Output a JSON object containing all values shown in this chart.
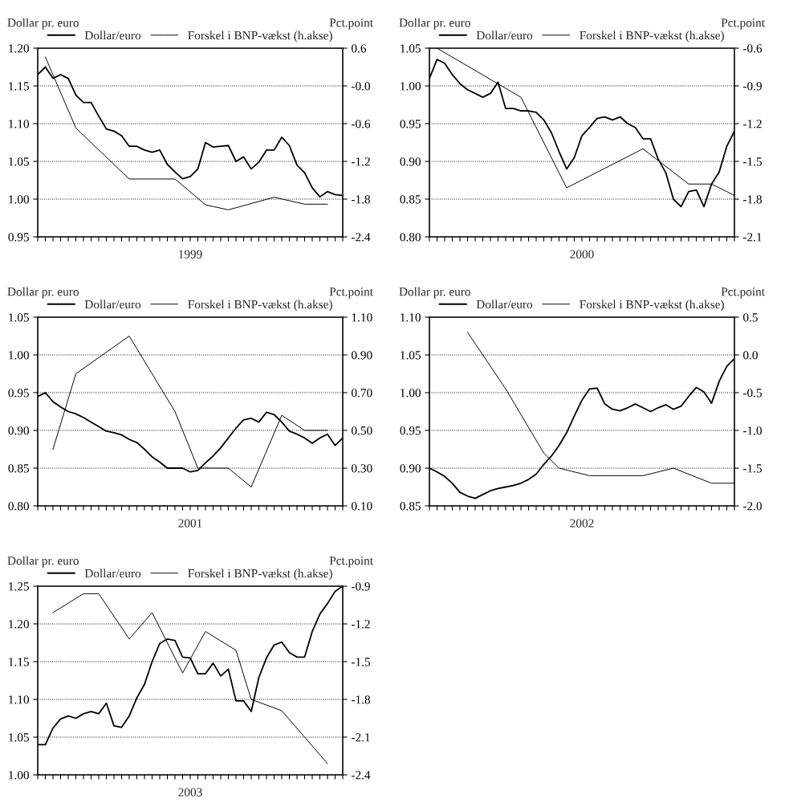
{
  "chart_data": [
    {
      "type": "line",
      "xlabel": "1999",
      "ylabel": "Dollar pr. euro",
      "y2label": "Pct.point",
      "categories": [
        null,
        null,
        null,
        null,
        null,
        null,
        null,
        null,
        null,
        null,
        null,
        null,
        null,
        null,
        null,
        null,
        null,
        null,
        null,
        null,
        null,
        null,
        null,
        null,
        null,
        null,
        null,
        null,
        null,
        null,
        null,
        null,
        null,
        null,
        null,
        null,
        null,
        null,
        null,
        null,
        null
      ],
      "ylim": [
        0.95,
        1.2
      ],
      "yticks": [
        0.95,
        {
          "value": 1.0,
          "label": "1.00"
        },
        1.05,
        {
          "value": 1.1,
          "label": "1.10"
        },
        1.15,
        {
          "value": 1.2,
          "label": "1.20"
        }
      ],
      "y2lim": [
        -2.4,
        0.6
      ],
      "y2ticks": [
        0.6,
        {
          "value": 0,
          "label": "-0.0"
        },
        -0.6,
        -1.2,
        -1.8,
        -2.4
      ],
      "grid": "y",
      "legend": "top",
      "series": [
        {
          "name": "Dollar/euro",
          "color": "#000000",
          "values": [
            1.165,
            1.175,
            1.16,
            1.165,
            1.16,
            1.138,
            1.128,
            1.128,
            1.11,
            1.093,
            1.09,
            1.084,
            1.07,
            1.07,
            1.065,
            1.062,
            1.065,
            1.046,
            1.036,
            1.027,
            1.03,
            1.04,
            1.075,
            1.069,
            1.07,
            1.071,
            1.05,
            1.056,
            1.04,
            1.049,
            1.065,
            1.065,
            1.082,
            1.071,
            1.045,
            1.035,
            1.015,
            1.003,
            1.01,
            1.006,
            1.005
          ]
        },
        {
          "name": "Forskel i BNP-vækst (h.akse)",
          "color": "#000000",
          "axis": "y2",
          "values": [
            null,
            0.46,
            null,
            null,
            null,
            -0.67,
            null,
            null,
            null,
            null,
            null,
            null,
            -1.48,
            null,
            null,
            null,
            null,
            null,
            -1.48,
            null,
            null,
            null,
            -1.89,
            null,
            null,
            -1.97,
            null,
            null,
            null,
            null,
            null,
            -1.77,
            null,
            null,
            null,
            -1.88,
            null,
            null,
            -1.88,
            null,
            null
          ]
        }
      ]
    },
    {
      "type": "line",
      "xlabel": "2000",
      "ylabel": "Dollar pr. euro",
      "y2label": "Pct.point",
      "categories": [
        null,
        null,
        null,
        null,
        null,
        null,
        null,
        null,
        null,
        null,
        null,
        null,
        null,
        null,
        null,
        null,
        null,
        null,
        null,
        null,
        null,
        null,
        null,
        null,
        null,
        null,
        null,
        null,
        null,
        null,
        null,
        null,
        null,
        null,
        null,
        null,
        null,
        null,
        null,
        null,
        null
      ],
      "ylim": [
        0.8,
        1.05
      ],
      "yticks": [
        {
          "value": 0.8,
          "label": "0.80"
        },
        0.85,
        {
          "value": 0.9,
          "label": "0.90"
        },
        0.95,
        {
          "value": 1.0,
          "label": "1.00"
        },
        1.05
      ],
      "y2lim": [
        -2.1,
        -0.6
      ],
      "y2ticks": [
        -0.6,
        -0.9,
        -1.2,
        -1.5,
        -1.8,
        -2.1
      ],
      "grid": "y",
      "legend": "top",
      "series": [
        {
          "name": "Dollar/euro",
          "color": "#000000",
          "values": [
            1.01,
            1.035,
            1.03,
            1.015,
            1.003,
            0.995,
            0.99,
            0.985,
            0.99,
            1.005,
            0.97,
            0.97,
            0.967,
            0.967,
            0.965,
            0.955,
            0.938,
            0.913,
            0.89,
            0.905,
            0.934,
            0.945,
            0.957,
            0.959,
            0.955,
            0.959,
            0.95,
            0.945,
            0.93,
            0.93,
            0.903,
            0.885,
            0.85,
            0.84,
            0.86,
            0.862,
            0.84,
            0.87,
            0.886,
            0.92,
            0.94
          ]
        },
        {
          "name": "Forskel i BNP-vækst (h.akse)",
          "color": "#000000",
          "axis": "y2",
          "values": [
            null,
            -0.6,
            null,
            null,
            null,
            null,
            null,
            null,
            null,
            null,
            null,
            null,
            -0.99,
            null,
            null,
            null,
            null,
            null,
            -1.71,
            null,
            null,
            null,
            null,
            null,
            null,
            null,
            null,
            null,
            -1.4,
            null,
            null,
            null,
            null,
            null,
            -1.68,
            null,
            null,
            -1.68,
            null,
            null,
            -1.77
          ]
        }
      ]
    },
    {
      "type": "line",
      "xlabel": "2001",
      "ylabel": "Dollar pr. euro",
      "y2label": "Pct.point",
      "categories": [
        null,
        null,
        null,
        null,
        null,
        null,
        null,
        null,
        null,
        null,
        null,
        null,
        null,
        null,
        null,
        null,
        null,
        null,
        null,
        null,
        null,
        null,
        null,
        null,
        null,
        null,
        null,
        null,
        null,
        null,
        null,
        null,
        null,
        null,
        null,
        null,
        null,
        null,
        null,
        null,
        null
      ],
      "ylim": [
        0.8,
        1.05
      ],
      "yticks": [
        {
          "value": 0.8,
          "label": "0.80"
        },
        0.85,
        {
          "value": 0.9,
          "label": "0.90"
        },
        0.95,
        {
          "value": 1.0,
          "label": "1.00"
        },
        1.05
      ],
      "y2lim": [
        0.1,
        1.1
      ],
      "y2ticks": [
        {
          "value": 0.1,
          "label": "0.10"
        },
        {
          "value": 0.3,
          "label": "0.30"
        },
        {
          "value": 0.5,
          "label": "0.50"
        },
        {
          "value": 0.7,
          "label": "0.70"
        },
        {
          "value": 0.9,
          "label": "0.90"
        },
        {
          "value": 1.1,
          "label": "1.10"
        }
      ],
      "grid": "y",
      "legend": "top",
      "series": [
        {
          "name": "Dollar/euro",
          "color": "#000000",
          "values": [
            0.945,
            0.95,
            0.938,
            0.931,
            0.925,
            0.922,
            0.917,
            0.911,
            0.905,
            0.899,
            0.897,
            0.894,
            0.888,
            0.884,
            0.875,
            0.865,
            0.858,
            0.85,
            0.85,
            0.85,
            0.845,
            0.847,
            0.857,
            0.866,
            0.877,
            0.89,
            0.903,
            0.914,
            0.916,
            0.911,
            0.924,
            0.921,
            0.911,
            0.899,
            0.895,
            0.89,
            0.883,
            0.89,
            0.895,
            0.88,
            0.89
          ]
        },
        {
          "name": "Forskel i BNP-vækst (h.akse)",
          "color": "#000000",
          "axis": "y2",
          "values": [
            null,
            null,
            0.4,
            null,
            null,
            0.8,
            null,
            null,
            null,
            null,
            null,
            null,
            1.0,
            null,
            null,
            null,
            null,
            null,
            0.6,
            null,
            null,
            0.3,
            null,
            null,
            null,
            0.3,
            null,
            null,
            0.2,
            null,
            null,
            null,
            0.58,
            null,
            null,
            0.5,
            null,
            null,
            0.5,
            null,
            null
          ]
        }
      ]
    },
    {
      "type": "line",
      "xlabel": "2002",
      "ylabel": "Dollar pr. euro",
      "y2label": "Pct.point",
      "categories": [
        null,
        null,
        null,
        null,
        null,
        null,
        null,
        null,
        null,
        null,
        null,
        null,
        null,
        null,
        null,
        null,
        null,
        null,
        null,
        null,
        null,
        null,
        null,
        null,
        null,
        null,
        null,
        null,
        null,
        null,
        null,
        null,
        null,
        null,
        null,
        null,
        null,
        null,
        null,
        null,
        null
      ],
      "ylim": [
        0.85,
        1.1
      ],
      "yticks": [
        0.85,
        {
          "value": 0.9,
          "label": "0.90"
        },
        0.95,
        {
          "value": 1.0,
          "label": "1.00"
        },
        1.05,
        {
          "value": 1.1,
          "label": "1.10"
        }
      ],
      "y2lim": [
        -2.0,
        0.5
      ],
      "y2ticks": [
        0.5,
        {
          "value": 0,
          "label": "0.0"
        },
        -0.5,
        {
          "value": -1,
          "label": "-1.0"
        },
        -1.5,
        {
          "value": -2,
          "label": "-2.0"
        }
      ],
      "grid": "y",
      "legend": "top",
      "series": [
        {
          "name": "Dollar/euro",
          "color": "#000000",
          "values": [
            0.9,
            0.895,
            0.889,
            0.88,
            0.868,
            0.863,
            0.86,
            0.865,
            0.87,
            0.873,
            0.875,
            0.877,
            0.88,
            0.885,
            0.892,
            0.905,
            0.916,
            0.93,
            0.947,
            0.969,
            0.99,
            1.005,
            1.006,
            0.985,
            0.978,
            0.976,
            0.98,
            0.985,
            0.98,
            0.975,
            0.98,
            0.984,
            0.978,
            0.982,
            0.995,
            1.007,
            1.001,
            0.986,
            1.015,
            1.035,
            1.045
          ]
        },
        {
          "name": "Forskel i BNP-vækst (h.akse)",
          "color": "#000000",
          "axis": "y2",
          "values": [
            null,
            null,
            null,
            null,
            null,
            0.3,
            null,
            null,
            null,
            null,
            -0.45,
            null,
            null,
            null,
            null,
            -1.3,
            null,
            -1.5,
            null,
            null,
            null,
            -1.6,
            null,
            null,
            null,
            null,
            null,
            null,
            -1.6,
            null,
            null,
            null,
            -1.5,
            null,
            null,
            null,
            null,
            -1.7,
            null,
            null,
            -1.7
          ]
        }
      ]
    },
    {
      "type": "line",
      "xlabel": "2003",
      "ylabel": "Dollar pr. euro",
      "y2label": "Pct.point",
      "categories": [
        null,
        null,
        null,
        null,
        null,
        null,
        null,
        null,
        null,
        null,
        null,
        null,
        null,
        null,
        null,
        null,
        null,
        null,
        null,
        null,
        null,
        null,
        null,
        null,
        null,
        null,
        null,
        null,
        null,
        null,
        null,
        null,
        null,
        null,
        null,
        null,
        null,
        null,
        null,
        null,
        null
      ],
      "ylim": [
        1.0,
        1.25
      ],
      "yticks": [
        {
          "value": 1.0,
          "label": "1.00"
        },
        1.05,
        {
          "value": 1.1,
          "label": "1.10"
        },
        1.15,
        {
          "value": 1.2,
          "label": "1.20"
        },
        1.25
      ],
      "y2lim": [
        -2.4,
        -0.9
      ],
      "y2ticks": [
        -0.9,
        -1.2,
        -1.5,
        -1.8,
        -2.1,
        -2.4
      ],
      "grid": "y",
      "legend": "top",
      "series": [
        {
          "name": "Dollar/euro",
          "color": "#000000",
          "values": [
            1.04,
            1.04,
            1.062,
            1.074,
            1.078,
            1.075,
            1.081,
            1.084,
            1.081,
            1.095,
            1.065,
            1.063,
            1.078,
            1.102,
            1.12,
            1.15,
            1.174,
            1.18,
            1.178,
            1.156,
            1.155,
            1.134,
            1.134,
            1.148,
            1.131,
            1.14,
            1.098,
            1.098,
            1.084,
            1.129,
            1.155,
            1.172,
            1.176,
            1.162,
            1.156,
            1.156,
            1.19,
            1.213,
            1.227,
            1.243,
            1.25
          ]
        },
        {
          "name": "Forskel i BNP-vækst (h.akse)",
          "color": "#000000",
          "axis": "y2",
          "values": [
            null,
            null,
            -1.11,
            null,
            null,
            null,
            -0.96,
            null,
            -0.96,
            null,
            null,
            null,
            -1.32,
            null,
            null,
            -1.11,
            null,
            null,
            null,
            -1.59,
            null,
            null,
            -1.26,
            null,
            null,
            null,
            -1.41,
            null,
            -1.8,
            null,
            null,
            null,
            -1.89,
            null,
            null,
            null,
            null,
            null,
            -2.31,
            null,
            null
          ]
        }
      ]
    }
  ]
}
